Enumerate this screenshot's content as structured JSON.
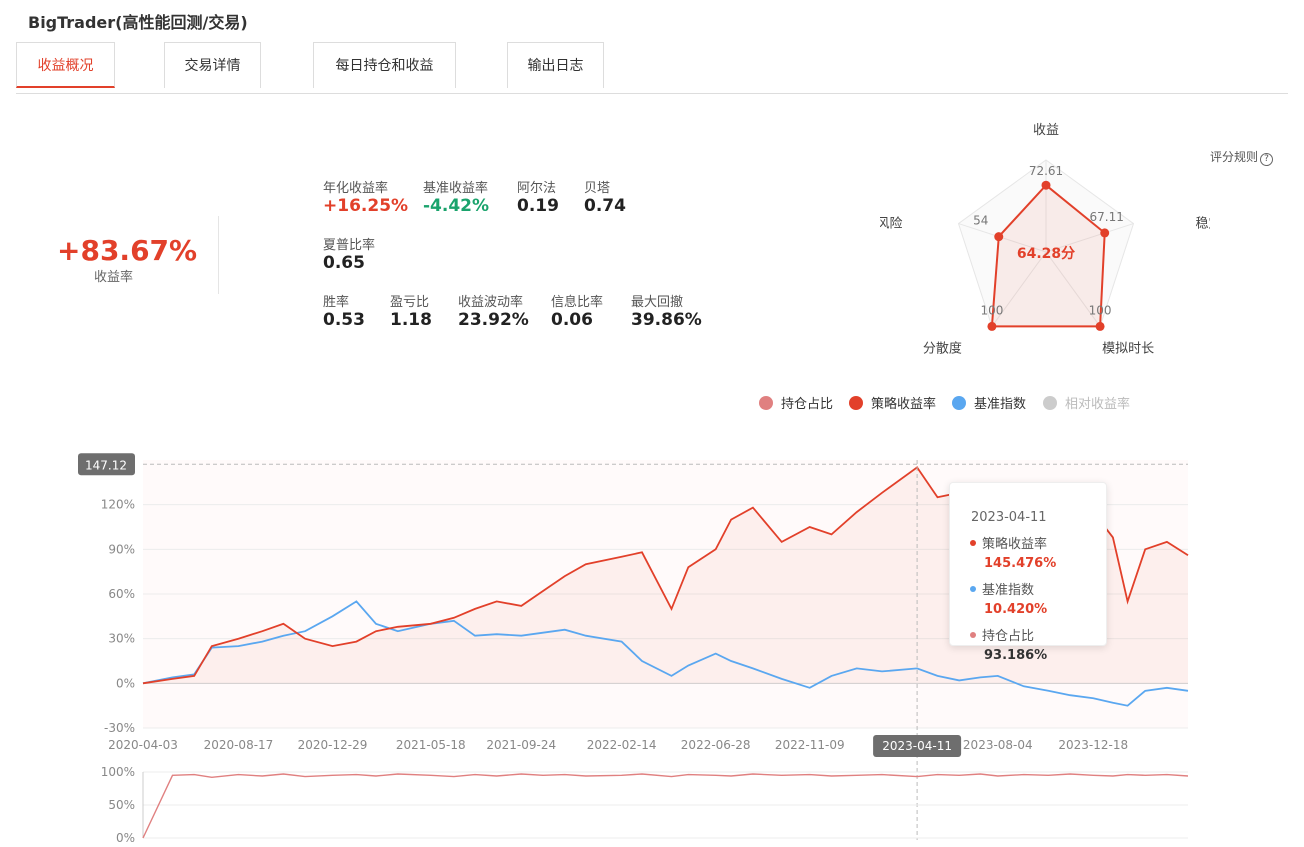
{
  "app": {
    "title": "BigTrader(高性能回测/交易)"
  },
  "tabs": [
    {
      "label": "收益概况",
      "active": true
    },
    {
      "label": "交易详情"
    },
    {
      "label": "每日持仓和收益"
    },
    {
      "label": "输出日志"
    }
  ],
  "summary": {
    "total_return": "+83.67%",
    "total_return_label": "收益率",
    "metrics_row1": [
      {
        "label": "年化收益率",
        "value": "+16.25%",
        "color": "red"
      },
      {
        "label": "基准收益率",
        "value": "-4.42%",
        "color": "green"
      },
      {
        "label": "阿尔法",
        "value": "0.19"
      },
      {
        "label": "贝塔",
        "value": "0.74"
      }
    ],
    "metrics_row2": [
      {
        "label": "夏普比率",
        "value": "0.65"
      }
    ],
    "metrics_row3": [
      {
        "label": "胜率",
        "value": "0.53"
      },
      {
        "label": "盈亏比",
        "value": "1.18"
      },
      {
        "label": "收益波动率",
        "value": "23.92%"
      },
      {
        "label": "信息比率",
        "value": "0.06"
      },
      {
        "label": "最大回撤",
        "value": "39.86%"
      }
    ]
  },
  "radar": {
    "score_rule_label": "评分规则",
    "total_score": "64.28分",
    "axes": [
      {
        "name": "收益",
        "value": 72.61,
        "label": "72.61"
      },
      {
        "name": "稳定性",
        "value": 67.11,
        "label": "67.11"
      },
      {
        "name": "模拟时长",
        "value": 100,
        "label": "100"
      },
      {
        "name": "分散度",
        "value": 100,
        "label": "100"
      },
      {
        "name": "抗风险",
        "value": 54,
        "label": "54"
      }
    ],
    "max": 100,
    "color": "#e2402a"
  },
  "legend": [
    {
      "name": "持仓占比",
      "color": "#e08080"
    },
    {
      "name": "策略收益率",
      "color": "#e2402a"
    },
    {
      "name": "基准指数",
      "color": "#5aa7f0"
    },
    {
      "name": "相对收益率",
      "color": "#cccccc"
    }
  ],
  "tooltip": {
    "date": "2023-04-11",
    "rows": [
      {
        "name": "策略收益率",
        "value": "145.476%",
        "color": "#e2402a"
      },
      {
        "name": "基准指数",
        "value": "10.420%",
        "color": "#5aa7f0"
      },
      {
        "name": "持仓占比",
        "value": "93.186%",
        "color": "#e08080"
      }
    ]
  },
  "chart_data": {
    "type": "line",
    "x_tick_labels": [
      "2020-04-03",
      "2020-08-17",
      "2020-12-29",
      "2021-05-18",
      "2021-09-24",
      "2022-02-14",
      "2022-06-28",
      "2022-11-09",
      "2023-04-11",
      "2023-08-04",
      "2023-12-18"
    ],
    "y_tick_labels": [
      "120%",
      "90%",
      "60%",
      "30%",
      "0%",
      "-30%"
    ],
    "y_ticks": [
      120,
      90,
      60,
      30,
      0,
      -30
    ],
    "ylim": [
      -30,
      150
    ],
    "max_marker": "147.12",
    "crosshair_x_label": "2023-04-11",
    "x": [
      "2020-04-03",
      "2020-05-15",
      "2020-06-15",
      "2020-07-10",
      "2020-08-17",
      "2020-09-20",
      "2020-10-20",
      "2020-11-20",
      "2020-12-29",
      "2021-02-01",
      "2021-03-01",
      "2021-04-01",
      "2021-05-18",
      "2021-06-20",
      "2021-07-20",
      "2021-08-20",
      "2021-09-24",
      "2021-10-25",
      "2021-11-25",
      "2021-12-25",
      "2022-02-14",
      "2022-03-15",
      "2022-04-26",
      "2022-05-20",
      "2022-06-28",
      "2022-07-20",
      "2022-08-20",
      "2022-09-30",
      "2022-11-09",
      "2022-12-10",
      "2023-01-15",
      "2023-02-20",
      "2023-04-11",
      "2023-05-10",
      "2023-06-10",
      "2023-07-10",
      "2023-08-04",
      "2023-09-10",
      "2023-10-15",
      "2023-11-15",
      "2023-12-18",
      "2024-01-15",
      "2024-02-05",
      "2024-03-01",
      "2024-04-01",
      "2024-05-01"
    ],
    "series": [
      {
        "name": "策略收益率",
        "values": [
          0,
          3,
          5,
          25,
          30,
          35,
          40,
          30,
          25,
          28,
          35,
          38,
          40,
          44,
          50,
          55,
          52,
          62,
          72,
          80,
          85,
          88,
          50,
          78,
          90,
          110,
          118,
          95,
          105,
          100,
          115,
          128,
          145,
          125,
          128,
          130,
          126,
          118,
          110,
          120,
          115,
          98,
          55,
          90,
          95,
          86
        ]
      },
      {
        "name": "基准指数",
        "values": [
          0,
          4,
          6,
          24,
          25,
          28,
          32,
          35,
          45,
          55,
          40,
          35,
          40,
          42,
          32,
          33,
          32,
          34,
          36,
          32,
          28,
          15,
          5,
          12,
          20,
          15,
          10,
          3,
          -3,
          5,
          10,
          8,
          10,
          5,
          2,
          4,
          5,
          -2,
          -5,
          -8,
          -10,
          -13,
          -15,
          -5,
          -3,
          -5
        ]
      },
      {
        "name": "持仓占比",
        "values": [
          0,
          95,
          96,
          92,
          96,
          94,
          97,
          93,
          95,
          96,
          94,
          97,
          95,
          93,
          96,
          94,
          97,
          95,
          96,
          94,
          95,
          97,
          93,
          96,
          95,
          94,
          97,
          95,
          96,
          94,
          95,
          96,
          93,
          96,
          95,
          97,
          94,
          96,
          95,
          97,
          95,
          94,
          96,
          95,
          96,
          94
        ]
      }
    ],
    "position_y_tick_labels": [
      "100%",
      "50%",
      "0%"
    ],
    "position_y_ticks": [
      100,
      50,
      0
    ],
    "position_ylim": [
      0,
      100
    ]
  }
}
